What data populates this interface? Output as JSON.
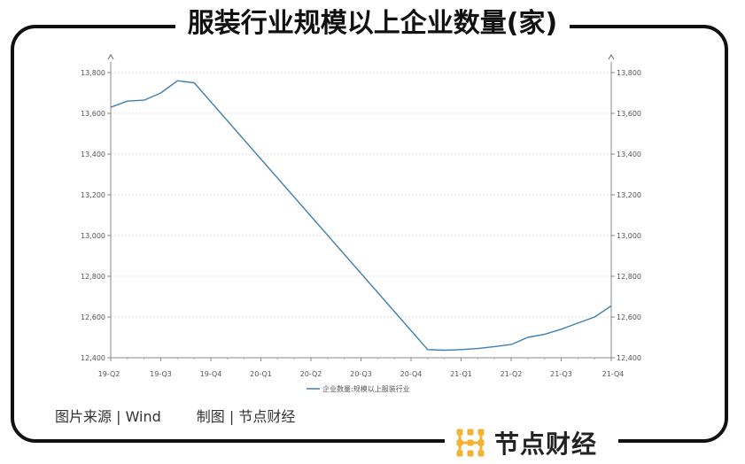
{
  "title": "服装行业规模以上企业数量(家)",
  "source_text": "图片来源 | Wind",
  "credit_text": "制图 | 节点财经",
  "brand": {
    "name": "节点财经",
    "logo_icon": "node-logo-icon",
    "logo_color": "#F2B233"
  },
  "chart_data": {
    "type": "line",
    "title": "",
    "xlabel": "",
    "ylabel": "",
    "x_tick_labels": [
      "19-Q2",
      "19-Q3",
      "19-Q4",
      "20-Q1",
      "20-Q2",
      "20-Q3",
      "20-Q4",
      "21-Q1",
      "21-Q2",
      "21-Q3",
      "21-Q4"
    ],
    "y_ticks": [
      12400,
      12600,
      12800,
      13000,
      13200,
      13400,
      13600,
      13800
    ],
    "y_tick_labels": [
      "12,400",
      "12,600",
      "12,800",
      "13,000",
      "13,200",
      "13,400",
      "13,600",
      "13,800"
    ],
    "ylim": [
      12400,
      13800
    ],
    "xlim": [
      "19-Q2",
      "21-Q4"
    ],
    "dual_y_axis": true,
    "grid": "horizontal dashed",
    "legend": "bottom-center",
    "series": [
      {
        "name": "企业数量:规模以上服装行业",
        "color": "#3E7FB0",
        "x": [
          "2019-04",
          "2019-05",
          "2019-06",
          "2019-07",
          "2019-08",
          "2019-09",
          "2020-11",
          "2020-12",
          "2021-01",
          "2021-02",
          "2021-03",
          "2021-04",
          "2021-05",
          "2021-06",
          "2021-07",
          "2021-08",
          "2021-09",
          "2021-10"
        ],
        "values": [
          13630,
          13660,
          13665,
          13700,
          13760,
          13750,
          12440,
          12437,
          12440,
          12445,
          12455,
          12465,
          12500,
          12515,
          12540,
          12570,
          12600,
          12655
        ]
      }
    ]
  }
}
